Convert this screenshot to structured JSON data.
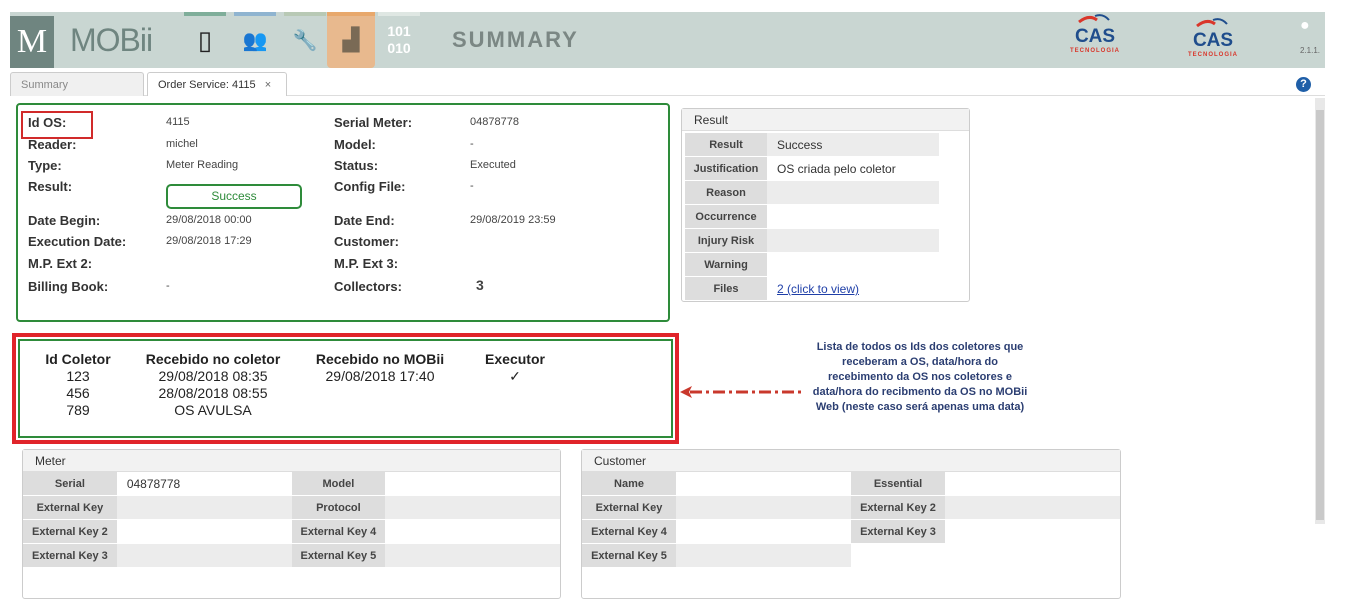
{
  "header": {
    "logo_letter": "M",
    "app_name": "MOBii",
    "binary_icon": [
      "101",
      "010"
    ],
    "page_title": "SUMMARY",
    "brand": {
      "name": "CAS",
      "sub": "TECNOLOGIA"
    },
    "version": "2.1.1.",
    "nav_colors": [
      "#7fae9a",
      "#8fb4d0",
      "#b8c9b5",
      "#e8a86c",
      "#dfe7e3"
    ],
    "active_nav_bg": "#e8b98e"
  },
  "tabs": [
    {
      "label": "Summary"
    },
    {
      "label": "Order Service: 4115",
      "close": "×"
    }
  ],
  "order": {
    "left": [
      {
        "label": "Id OS:",
        "value": "4115"
      },
      {
        "label": "Reader:",
        "value": "michel"
      },
      {
        "label": "Type:",
        "value": "Meter Reading"
      },
      {
        "label": "Result:",
        "value": "Success"
      },
      {
        "label": "Date Begin:",
        "value": "29/08/2018 00:00"
      },
      {
        "label": "Execution Date:",
        "value": "29/08/2018 17:29"
      },
      {
        "label": "M.P. Ext 2:",
        "value": ""
      },
      {
        "label": "Billing Book:",
        "value": "-"
      }
    ],
    "right": [
      {
        "label": "Serial Meter:",
        "value": "04878778"
      },
      {
        "label": "Model:",
        "value": "-"
      },
      {
        "label": "Status:",
        "value": "Executed"
      },
      {
        "label": "Config File:",
        "value": "-"
      },
      {
        "label": "Date End:",
        "value": "29/08/2019 23:59"
      },
      {
        "label": "Customer:",
        "value": ""
      },
      {
        "label": "M.P. Ext 3:",
        "value": ""
      },
      {
        "label": "Collectors:",
        "value": "3"
      }
    ]
  },
  "result_panel": {
    "title": "Result",
    "rows": [
      {
        "k": "Result",
        "v": "Success"
      },
      {
        "k": "Justification",
        "v": "OS criada pelo coletor"
      },
      {
        "k": "Reason",
        "v": ""
      },
      {
        "k": "Occurrence",
        "v": ""
      },
      {
        "k": "Injury Risk",
        "v": ""
      },
      {
        "k": "Warning",
        "v": ""
      },
      {
        "k": "Files",
        "v": "2 (click to view)"
      }
    ]
  },
  "collectors": {
    "headers": [
      "Id Coletor",
      "Recebido no coletor",
      "Recebido no MOBii",
      "Executor"
    ],
    "ids": [
      "123",
      "456",
      "789"
    ],
    "received_collector": [
      "29/08/2018 08:35",
      "28/08/2018 08:55",
      "OS AVULSA"
    ],
    "received_mobii": [
      "29/08/2018 17:40"
    ],
    "executor": [
      "✓"
    ]
  },
  "annotation": "Lista de todos os Ids dos coletores que receberam a OS, data/hora do recebimento da OS nos coletores e data/hora do recibmento da OS no MOBii Web (neste caso será apenas uma data)",
  "meter": {
    "title": "Meter",
    "rows": [
      [
        "Serial",
        "04878778",
        "Model",
        ""
      ],
      [
        "External Key",
        "",
        "Protocol",
        ""
      ],
      [
        "External Key 2",
        "",
        "External Key 4",
        ""
      ],
      [
        "External Key 3",
        "",
        "External Key 5",
        ""
      ]
    ]
  },
  "customer": {
    "title": "Customer",
    "rows": [
      [
        "Name",
        "",
        "Essential",
        ""
      ],
      [
        "External Key",
        "",
        "External Key 2",
        ""
      ],
      [
        "External Key 4",
        "",
        "External Key 3",
        ""
      ],
      [
        "External Key 5",
        "",
        null,
        null
      ]
    ]
  }
}
